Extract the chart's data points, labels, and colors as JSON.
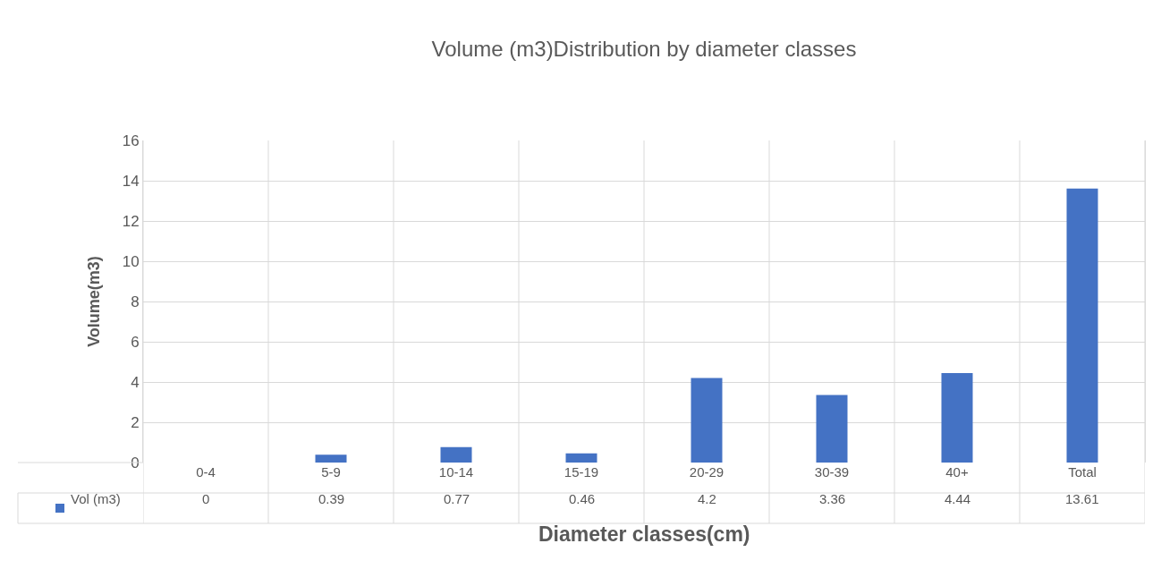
{
  "chart_data": {
    "type": "bar",
    "title": "Volume (m3)Distribution by diameter classes",
    "xlabel": "Diameter classes(cm)",
    "ylabel": "Volume(m3)",
    "categories": [
      "0-4",
      "5-9",
      "10-14",
      "15-19",
      "20-29",
      "30-39",
      "40+",
      "Total"
    ],
    "series": [
      {
        "name": "Vol (m3)",
        "color": "#4472c4",
        "values": [
          0,
          0.39,
          0.77,
          0.46,
          4.2,
          3.36,
          4.44,
          13.61
        ]
      }
    ],
    "ylim": [
      0,
      16
    ],
    "yticks": [
      0,
      2,
      4,
      6,
      8,
      10,
      12,
      14,
      16
    ],
    "grid": true,
    "data_labels": true
  }
}
